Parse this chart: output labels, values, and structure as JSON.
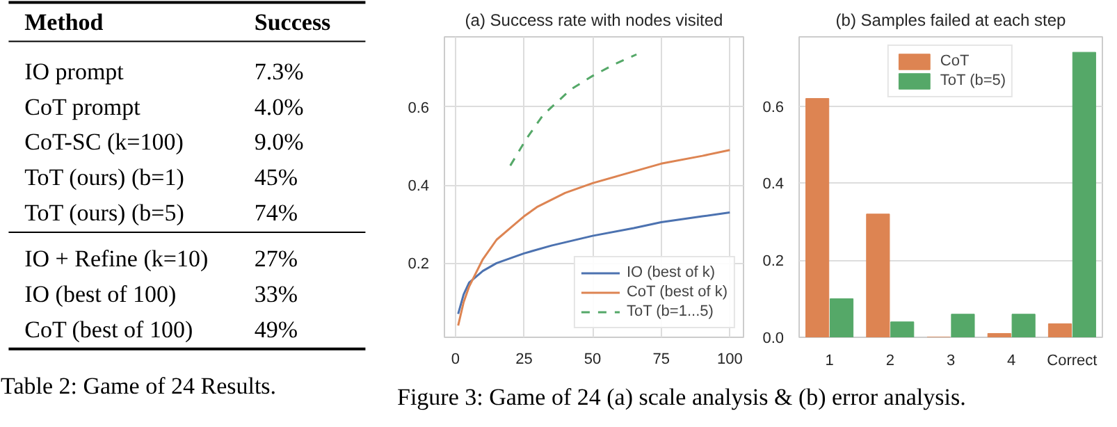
{
  "chart_data": [
    {
      "type": "other",
      "annotations": [
        "Method",
        "Success",
        "IO prompt",
        "7.3%",
        "CoT prompt",
        "4.0%",
        "CoT-SC (k=100)",
        "9.0%",
        "ToT (ours) (b=1)",
        "45%",
        "ToT (ours) (b=5)",
        "74%",
        "IO + Refine (k=10)",
        "27%",
        "IO (best of 100)",
        "33%",
        "CoT (best of 100)",
        "49%",
        "Table 2: Game of 24 Results."
      ]
    },
    {
      "type": "line",
      "title": "(a) Success rate with nodes visited",
      "xlim": [
        -4,
        105
      ],
      "ylim": [
        0.01,
        0.78
      ],
      "xticks": [
        0,
        25,
        50,
        75,
        100
      ],
      "yticks": [
        0.2,
        0.4,
        0.6
      ],
      "grid": true,
      "legend": "bottom right",
      "annotations": [
        "Figure 3: Game of 24 (a) scale analysis & (b) error analysis."
      ],
      "series": [
        {
          "name": "IO (best of k)",
          "color": "#4c72b0",
          "line_style": "solid",
          "x": [
            1,
            3,
            5,
            10,
            15,
            25,
            35,
            50,
            65,
            75,
            90,
            100
          ],
          "values": [
            0.07,
            0.12,
            0.15,
            0.18,
            0.2,
            0.225,
            0.245,
            0.27,
            0.29,
            0.305,
            0.32,
            0.33
          ]
        },
        {
          "name": "CoT (best of k)",
          "color": "#dd8452",
          "line_style": "solid",
          "x": [
            1,
            3,
            5,
            10,
            15,
            20,
            25,
            30,
            40,
            50,
            60,
            75,
            90,
            100
          ],
          "values": [
            0.04,
            0.1,
            0.14,
            0.21,
            0.26,
            0.29,
            0.32,
            0.345,
            0.38,
            0.405,
            0.425,
            0.455,
            0.475,
            0.49
          ]
        },
        {
          "name": "ToT (b=1...5)",
          "color": "#55a868",
          "line_style": "dashed",
          "x": [
            20,
            26,
            32,
            42,
            50,
            58,
            66
          ],
          "values": [
            0.45,
            0.52,
            0.58,
            0.645,
            0.68,
            0.71,
            0.735
          ]
        }
      ]
    },
    {
      "type": "bar",
      "title": "(b) Samples failed at each step",
      "categories": [
        "1",
        "2",
        "3",
        "4",
        "Correct"
      ],
      "ylim": [
        0,
        0.78
      ],
      "yticks": [
        {
          "value": 0,
          "label": "0.0"
        },
        0.2,
        0.4,
        0.6
      ],
      "grid": "y",
      "legend": "top",
      "series": [
        {
          "name": "CoT",
          "color": "#dd8452",
          "values": [
            0.62,
            0.32,
            0.0,
            0.01,
            0.035
          ]
        },
        {
          "name": "ToT (b=5)",
          "color": "#55a868",
          "values": [
            0.1,
            0.04,
            0.06,
            0.06,
            0.74
          ]
        }
      ]
    }
  ]
}
